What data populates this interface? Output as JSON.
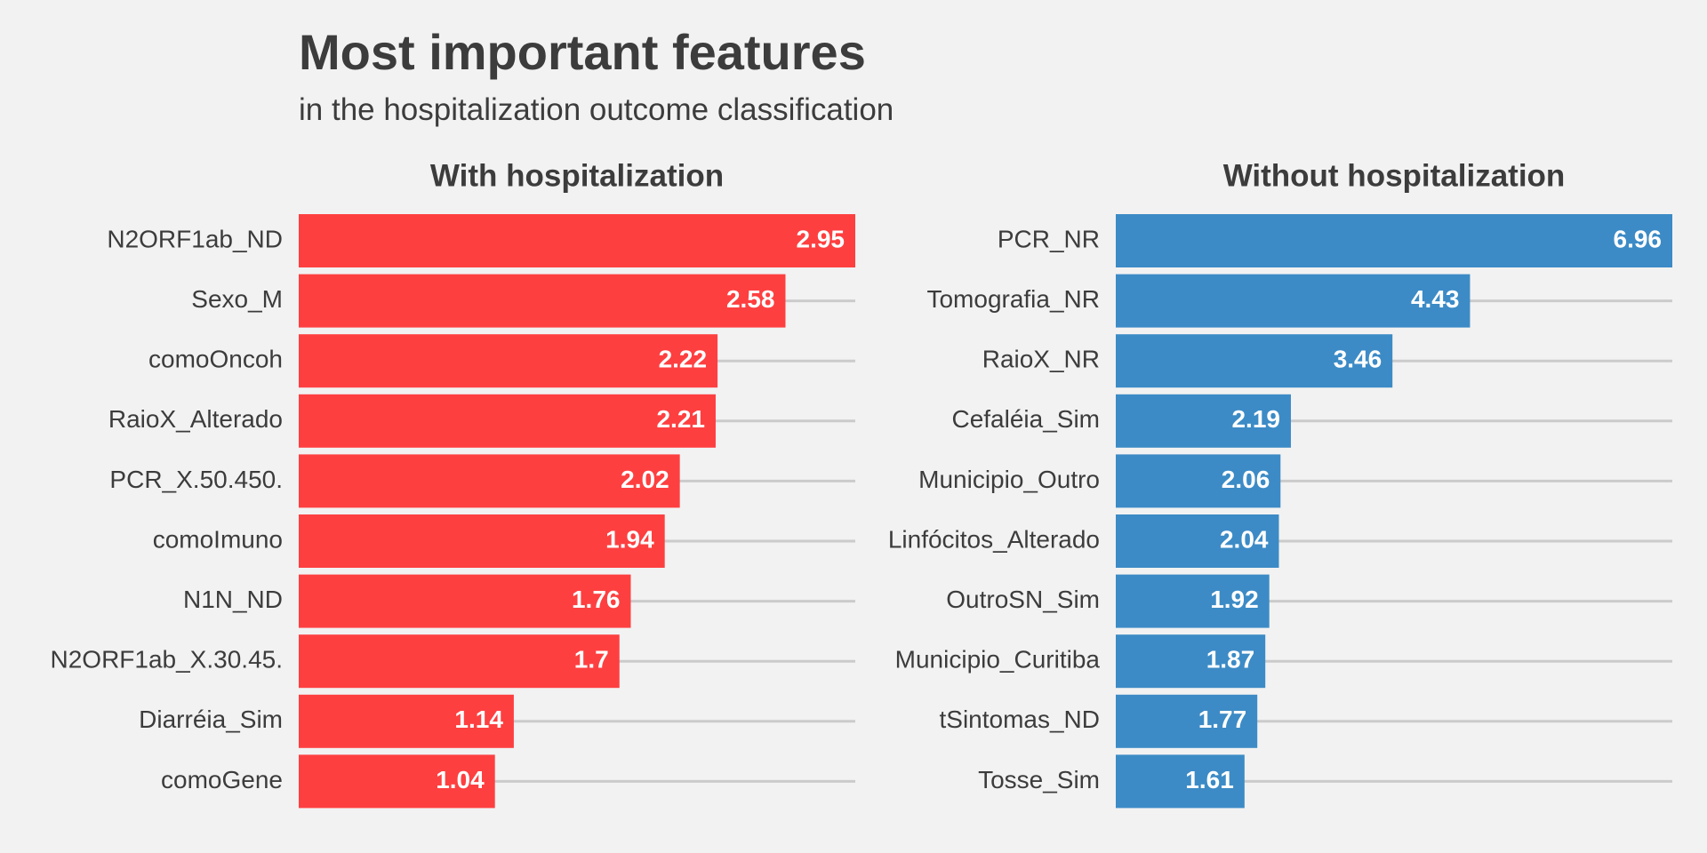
{
  "chart_data": {
    "type": "bar",
    "orientation": "horizontal",
    "title": "Most important features",
    "subtitle": "in the hospitalization outcome classification",
    "grid": true,
    "legend": "none",
    "panels": [
      {
        "title": "With hospitalization",
        "color": "#fe3f40",
        "categories": [
          "N2ORF1ab_ND",
          "Sexo_M",
          "comoOncoh",
          "RaioX_Alterado",
          "PCR_X.50.450.",
          "comoImuno",
          "N1N_ND",
          "N2ORF1ab_X.30.45.",
          "Diarréia_Sim",
          "comoGene"
        ],
        "values": [
          2.95,
          2.58,
          2.22,
          2.21,
          2.02,
          1.94,
          1.76,
          1.7,
          1.14,
          1.04
        ],
        "labels": [
          "2.95",
          "2.58",
          "2.22",
          "2.21",
          "2.02",
          "1.94",
          "1.76",
          "1.7",
          "1.14",
          "1.04"
        ],
        "xlim": [
          0,
          2.95
        ]
      },
      {
        "title": "Without hospitalization",
        "color": "#3c8bc6",
        "categories": [
          "PCR_NR",
          "Tomografia_NR",
          "RaioX_NR",
          "Cefaléia_Sim",
          "Municipio_Outro",
          "Linfócitos_Alterado",
          "OutroSN_Sim",
          "Municipio_Curitiba",
          "tSintomas_ND",
          "Tosse_Sim"
        ],
        "values": [
          6.96,
          4.43,
          3.46,
          2.19,
          2.06,
          2.04,
          1.92,
          1.87,
          1.77,
          1.61
        ],
        "labels": [
          "6.96",
          "4.43",
          "3.46",
          "2.19",
          "2.06",
          "2.04",
          "1.92",
          "1.87",
          "1.77",
          "1.61"
        ],
        "xlim": [
          0,
          6.96
        ]
      }
    ]
  }
}
